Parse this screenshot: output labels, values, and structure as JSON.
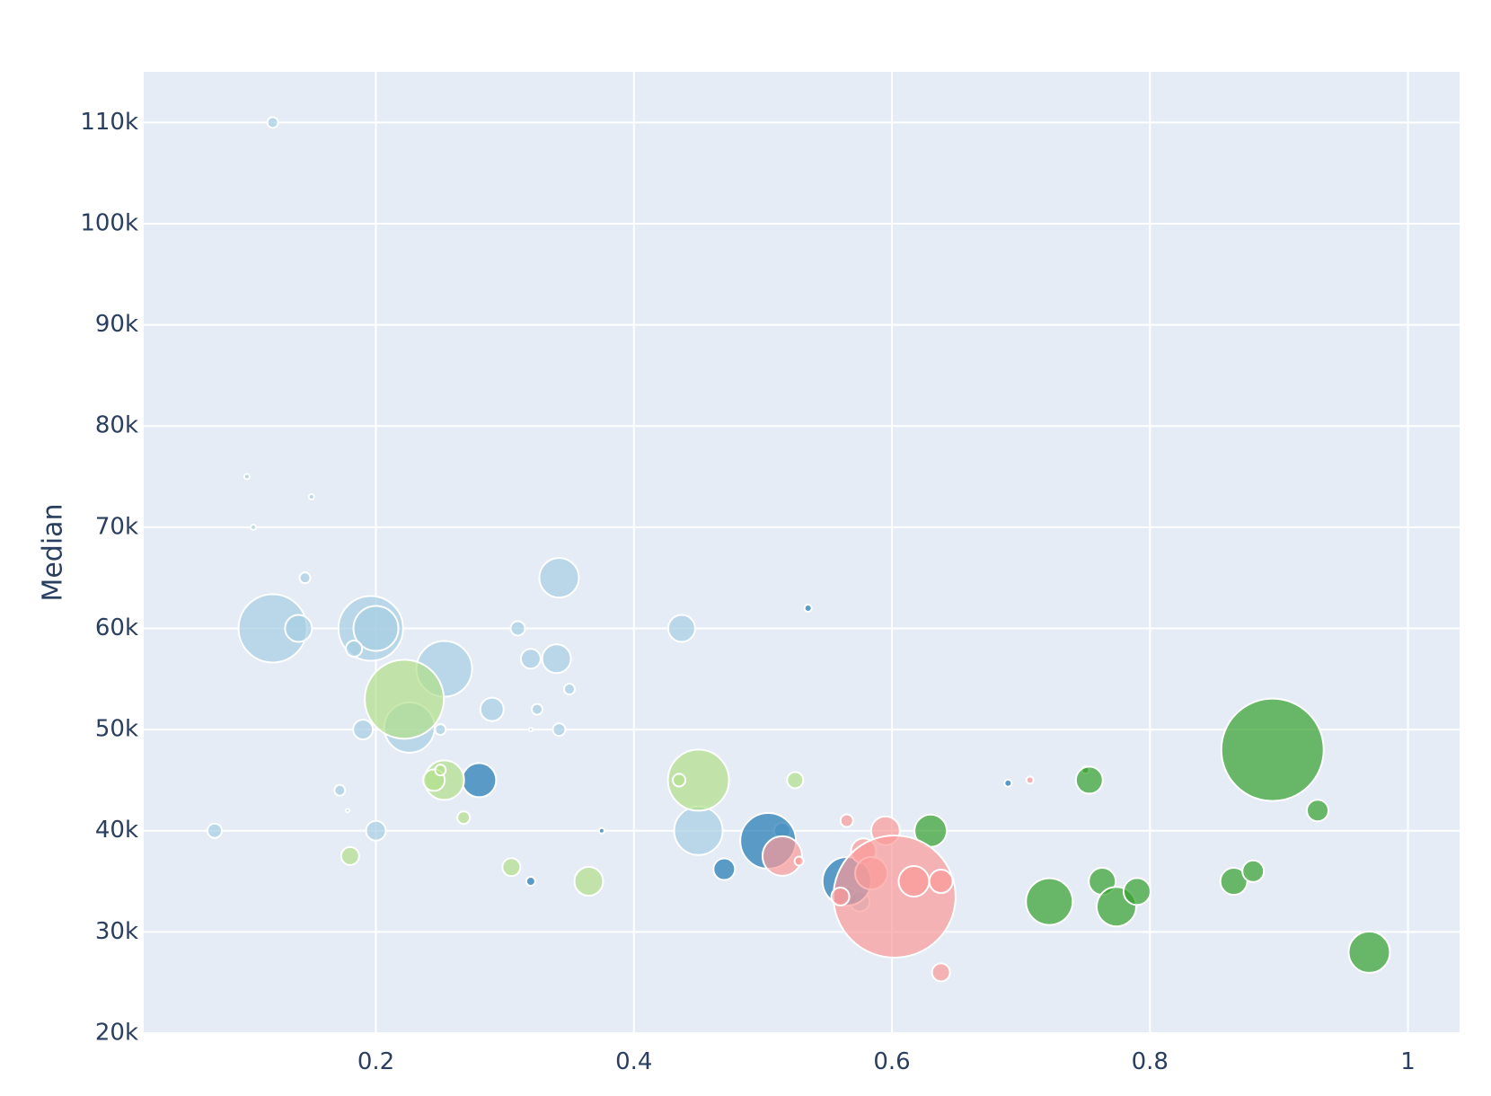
{
  "chart_data": {
    "type": "scatter",
    "title": "",
    "xlabel": "",
    "ylabel": "Median",
    "xlim": [
      0.02,
      1.04
    ],
    "ylim": [
      20000,
      115000
    ],
    "x_ticks": [
      {
        "value": 0.2,
        "label": "0.2"
      },
      {
        "value": 0.4,
        "label": "0.4"
      },
      {
        "value": 0.6,
        "label": "0.6"
      },
      {
        "value": 0.8,
        "label": "0.8"
      },
      {
        "value": 1.0,
        "label": "1"
      }
    ],
    "y_ticks": [
      {
        "value": 20000,
        "label": "20k"
      },
      {
        "value": 30000,
        "label": "30k"
      },
      {
        "value": 40000,
        "label": "40k"
      },
      {
        "value": 50000,
        "label": "50k"
      },
      {
        "value": 60000,
        "label": "60k"
      },
      {
        "value": 70000,
        "label": "70k"
      },
      {
        "value": 80000,
        "label": "80k"
      },
      {
        "value": 90000,
        "label": "90k"
      },
      {
        "value": 100000,
        "label": "100k"
      },
      {
        "value": 110000,
        "label": "110k"
      }
    ],
    "grid": true,
    "legend": false,
    "colors": {
      "plot_bg": "#e5ecf6",
      "grid": "#ffffff",
      "light_blue": "#a6cee3",
      "dark_blue": "#1f78b4",
      "light_green": "#b2df8a",
      "dark_green": "#33a02c",
      "pink": "#fb9a99"
    },
    "series": [
      {
        "color": "#a6cee3",
        "points": [
          {
            "x": 0.12,
            "y": 110000,
            "size": 6
          },
          {
            "x": 0.1,
            "y": 75000,
            "size": 3
          },
          {
            "x": 0.15,
            "y": 73000,
            "size": 3
          },
          {
            "x": 0.105,
            "y": 70000,
            "size": 3
          },
          {
            "x": 0.145,
            "y": 65000,
            "size": 6
          },
          {
            "x": 0.12,
            "y": 60000,
            "size": 38
          },
          {
            "x": 0.14,
            "y": 60000,
            "size": 15
          },
          {
            "x": 0.196,
            "y": 60000,
            "size": 36
          },
          {
            "x": 0.2,
            "y": 60000,
            "size": 25
          },
          {
            "x": 0.183,
            "y": 58000,
            "size": 9
          },
          {
            "x": 0.253,
            "y": 56000,
            "size": 31
          },
          {
            "x": 0.226,
            "y": 50200,
            "size": 28
          },
          {
            "x": 0.19,
            "y": 50000,
            "size": 11
          },
          {
            "x": 0.25,
            "y": 50000,
            "size": 6
          },
          {
            "x": 0.172,
            "y": 44000,
            "size": 6
          },
          {
            "x": 0.178,
            "y": 42000,
            "size": 2
          },
          {
            "x": 0.075,
            "y": 40000,
            "size": 8
          },
          {
            "x": 0.2,
            "y": 40000,
            "size": 11
          },
          {
            "x": 0.342,
            "y": 65000,
            "size": 22
          },
          {
            "x": 0.31,
            "y": 60000,
            "size": 8
          },
          {
            "x": 0.32,
            "y": 57000,
            "size": 11
          },
          {
            "x": 0.34,
            "y": 57000,
            "size": 16
          },
          {
            "x": 0.35,
            "y": 54000,
            "size": 6
          },
          {
            "x": 0.29,
            "y": 52000,
            "size": 13
          },
          {
            "x": 0.325,
            "y": 52000,
            "size": 6
          },
          {
            "x": 0.32,
            "y": 50000,
            "size": 2
          },
          {
            "x": 0.342,
            "y": 50000,
            "size": 7
          },
          {
            "x": 0.437,
            "y": 60000,
            "size": 15
          },
          {
            "x": 0.45,
            "y": 40000,
            "size": 27
          },
          {
            "x": 0.515,
            "y": 40000,
            "size": 9
          },
          {
            "x": 0.565,
            "y": 33500,
            "size": 11
          },
          {
            "x": 0.575,
            "y": 33000,
            "size": 11
          }
        ]
      },
      {
        "color": "#1f78b4",
        "points": [
          {
            "x": 0.28,
            "y": 45000,
            "size": 19
          },
          {
            "x": 0.32,
            "y": 35000,
            "size": 5
          },
          {
            "x": 0.375,
            "y": 40000,
            "size": 3
          },
          {
            "x": 0.47,
            "y": 36200,
            "size": 12
          },
          {
            "x": 0.504,
            "y": 39000,
            "size": 31
          },
          {
            "x": 0.535,
            "y": 62000,
            "size": 4
          },
          {
            "x": 0.565,
            "y": 35000,
            "size": 27
          },
          {
            "x": 0.69,
            "y": 44700,
            "size": 4
          }
        ]
      },
      {
        "color": "#b2df8a",
        "points": [
          {
            "x": 0.222,
            "y": 53000,
            "size": 44
          },
          {
            "x": 0.253,
            "y": 45000,
            "size": 22
          },
          {
            "x": 0.245,
            "y": 45000,
            "size": 12
          },
          {
            "x": 0.25,
            "y": 46000,
            "size": 6
          },
          {
            "x": 0.268,
            "y": 41300,
            "size": 7
          },
          {
            "x": 0.18,
            "y": 37500,
            "size": 10
          },
          {
            "x": 0.305,
            "y": 36400,
            "size": 10
          },
          {
            "x": 0.365,
            "y": 35000,
            "size": 16
          },
          {
            "x": 0.45,
            "y": 45000,
            "size": 34
          },
          {
            "x": 0.435,
            "y": 45000,
            "size": 7
          },
          {
            "x": 0.525,
            "y": 45000,
            "size": 9
          }
        ]
      },
      {
        "color": "#33a02c",
        "points": [
          {
            "x": 0.63,
            "y": 40000,
            "size": 18
          },
          {
            "x": 0.75,
            "y": 46000,
            "size": 4
          },
          {
            "x": 0.753,
            "y": 45000,
            "size": 15
          },
          {
            "x": 0.722,
            "y": 33000,
            "size": 26
          },
          {
            "x": 0.763,
            "y": 35000,
            "size": 15
          },
          {
            "x": 0.774,
            "y": 32500,
            "size": 22
          },
          {
            "x": 0.79,
            "y": 34000,
            "size": 15
          },
          {
            "x": 0.865,
            "y": 35000,
            "size": 15
          },
          {
            "x": 0.88,
            "y": 36000,
            "size": 12
          },
          {
            "x": 0.895,
            "y": 48000,
            "size": 57
          },
          {
            "x": 0.93,
            "y": 42000,
            "size": 12
          },
          {
            "x": 0.97,
            "y": 28000,
            "size": 23
          }
        ]
      },
      {
        "color": "#fb9a99",
        "points": [
          {
            "x": 0.515,
            "y": 37500,
            "size": 22
          },
          {
            "x": 0.528,
            "y": 37000,
            "size": 5
          },
          {
            "x": 0.565,
            "y": 41000,
            "size": 7
          },
          {
            "x": 0.578,
            "y": 38000,
            "size": 14
          },
          {
            "x": 0.584,
            "y": 35800,
            "size": 18
          },
          {
            "x": 0.595,
            "y": 40000,
            "size": 16
          },
          {
            "x": 0.602,
            "y": 33500,
            "size": 68
          },
          {
            "x": 0.617,
            "y": 35000,
            "size": 17
          },
          {
            "x": 0.638,
            "y": 35000,
            "size": 13
          },
          {
            "x": 0.638,
            "y": 26000,
            "size": 10
          },
          {
            "x": 0.56,
            "y": 33500,
            "size": 10
          },
          {
            "x": 0.707,
            "y": 45000,
            "size": 4
          }
        ]
      }
    ]
  }
}
